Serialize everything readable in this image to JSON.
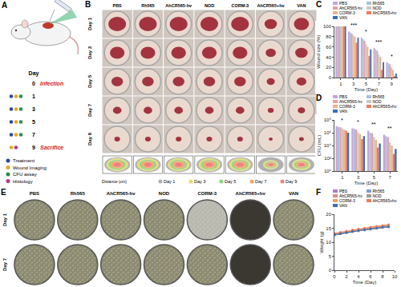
{
  "panels": {
    "A": {
      "panel": "A",
      "timeline_title": "Day",
      "days": [
        {
          "day": "0",
          "text": "Infection",
          "activities": []
        },
        {
          "day": "1",
          "activities": [
            "Treatment",
            "Wound Imaging",
            "CFU assay"
          ]
        },
        {
          "day": "3",
          "activities": [
            "Treatment",
            "Wound Imaging",
            "CFU assay"
          ]
        },
        {
          "day": "5",
          "activities": [
            "Treatment",
            "Wound Imaging",
            "CFU assay"
          ]
        },
        {
          "day": "7",
          "activities": [
            "Treatment",
            "Wound Imaging",
            "CFU assay"
          ]
        },
        {
          "day": "9",
          "text": "Sacrifice",
          "activities": [
            "Wound Imaging",
            "Histology"
          ]
        }
      ],
      "activities": [
        {
          "name": "Treatment",
          "color": "#2b4a9b"
        },
        {
          "name": "Wound Imaging",
          "color": "#e6a822"
        },
        {
          "name": "CFU assay",
          "color": "#2e8b57"
        },
        {
          "name": "Histology",
          "color": "#b03a8a"
        }
      ]
    },
    "B": {
      "panel": "B",
      "columns": [
        "PBS",
        "Rh565",
        "AhCR565-hv",
        "NOD",
        "CORM-3",
        "AhCR565+hv",
        "VAN"
      ],
      "rows": [
        "Day 1",
        "Day 3",
        "Day 5",
        "Day 7",
        "Day 9"
      ],
      "axis_label": "Distance (cm)",
      "legend": [
        {
          "name": "Day 1",
          "color": "#b0b0b0"
        },
        {
          "name": "Day 3",
          "color": "#e3dc6a"
        },
        {
          "name": "Day 5",
          "color": "#8fd080"
        },
        {
          "name": "Day 7",
          "color": "#f4a460"
        },
        {
          "name": "Day 9",
          "color": "#f08080"
        }
      ]
    },
    "E": {
      "panel": "E",
      "columns": [
        "PBS",
        "Rh565",
        "AhCR565-hv",
        "NOD",
        "CORM-3",
        "AhCR565+hv",
        "VAN"
      ],
      "rows": [
        "Day 1",
        "Day 7"
      ]
    }
  },
  "chart_data": [
    {
      "panel": "C",
      "type": "bar",
      "x_label": "Time (Day)",
      "y_label": "Wound size (%)",
      "x": [
        1,
        3,
        5,
        7,
        9
      ],
      "xlim": [
        0,
        10
      ],
      "xticks": [
        1,
        3,
        5,
        7,
        9
      ],
      "ylim": [
        0,
        100
      ],
      "yticks": [
        0,
        20,
        40,
        60,
        80,
        100
      ],
      "grid": false,
      "series": [
        {
          "name": "PBS",
          "color": "#c9a3d9",
          "values": [
            100,
            90,
            78,
            58,
            30
          ]
        },
        {
          "name": "Rh565",
          "color": "#a9c1e0",
          "values": [
            100,
            88,
            75,
            55,
            28
          ]
        },
        {
          "name": "AhCR565-hv",
          "color": "#e8a0a0",
          "values": [
            100,
            86,
            72,
            52,
            26
          ]
        },
        {
          "name": "NOD",
          "color": "#c8c8c8",
          "values": [
            100,
            82,
            65,
            45,
            20
          ]
        },
        {
          "name": "CORM-3",
          "color": "#f4b183",
          "values": [
            100,
            80,
            60,
            40,
            15
          ]
        },
        {
          "name": "AhCR565+hv",
          "color": "#f07a5a",
          "values": [
            100,
            68,
            42,
            15,
            3
          ]
        },
        {
          "name": "VAN",
          "color": "#3a6fb5",
          "values": [
            100,
            78,
            55,
            30,
            8
          ]
        }
      ],
      "annotations": [
        {
          "text": "***",
          "x": 3,
          "y": 93
        },
        {
          "text": "*",
          "x": 5,
          "y": 81
        },
        {
          "text": "***",
          "x": 7,
          "y": 61
        },
        {
          "text": "*",
          "x": 9,
          "y": 33
        }
      ]
    },
    {
      "panel": "D",
      "type": "bar",
      "x_label": "Time (Day)",
      "y_label": "CFU (mL)",
      "log": "y",
      "x": [
        1,
        3,
        5,
        7
      ],
      "xlim": [
        0,
        8
      ],
      "xticks": [
        1,
        3,
        5,
        7
      ],
      "ylim": [
        1,
        100000000
      ],
      "yticks": [
        {
          "value": 1,
          "label": "10⁰"
        },
        {
          "value": 100,
          "label": "10²"
        },
        {
          "value": 10000,
          "label": "10⁴"
        },
        {
          "value": 1000000,
          "label": "10⁶"
        },
        {
          "value": 100000000,
          "label": "10⁸"
        }
      ],
      "grid": false,
      "series": [
        {
          "name": "PBS",
          "color": "#c9a3d9",
          "values": [
            10000000,
            5000000,
            2000000,
            500000
          ]
        },
        {
          "name": "Rh565",
          "color": "#a9c1e0",
          "values": [
            8000000,
            4000000,
            1000000,
            300000
          ]
        },
        {
          "name": "AhCR565-hv",
          "color": "#e8a0a0",
          "values": [
            7000000,
            3000000,
            800000,
            200000
          ]
        },
        {
          "name": "NOD",
          "color": "#c8c8c8",
          "values": [
            5000000,
            1000000,
            200000,
            30000
          ]
        },
        {
          "name": "CORM-3",
          "color": "#f4b183",
          "values": [
            3000000,
            600000,
            80000,
            10000
          ]
        },
        {
          "name": "AhCR565+hv",
          "color": "#f07a5a",
          "values": [
            2000000,
            100000,
            5000,
            500
          ]
        },
        {
          "name": "VAN",
          "color": "#3a6fb5",
          "values": [
            1000000,
            300000,
            20000,
            3000
          ]
        }
      ],
      "annotations": [
        {
          "text": "*",
          "x": 1,
          "y": 20000000
        },
        {
          "text": "*",
          "x": 3,
          "y": 10000000
        },
        {
          "text": "**",
          "x": 5,
          "y": 4000000
        },
        {
          "text": "**",
          "x": 7,
          "y": 1000000
        }
      ]
    },
    {
      "panel": "F",
      "type": "line",
      "marker": "circle",
      "x_label": "Time (Day)",
      "y_label": "Weight (g)",
      "x": [
        0,
        1,
        2,
        3,
        4,
        5,
        6,
        7,
        8,
        9
      ],
      "xlim": [
        0,
        10
      ],
      "xticks": [
        0,
        2,
        4,
        6,
        8,
        10
      ],
      "ylim": [
        0,
        20
      ],
      "yticks": [
        0,
        5,
        10,
        15,
        20
      ],
      "grid": false,
      "series": [
        {
          "name": "PBS",
          "color": "#b07cc6",
          "values": [
            12.5,
            13,
            13.4,
            13.8,
            14.2,
            14.5,
            14.8,
            15,
            15.3,
            15.5
          ]
        },
        {
          "name": "Rh565",
          "color": "#7f9fce",
          "values": [
            12.8,
            13.2,
            13.6,
            14,
            14.3,
            14.6,
            14.9,
            15.2,
            15.4,
            15.7
          ]
        },
        {
          "name": "AhCR565-hv",
          "color": "#e08a8a",
          "values": [
            13,
            13.4,
            13.8,
            14.1,
            14.4,
            14.7,
            15,
            15.3,
            15.6,
            15.9
          ]
        },
        {
          "name": "NOD",
          "color": "#9a9a9a",
          "values": [
            12.6,
            13,
            13.3,
            13.7,
            14,
            14.3,
            14.6,
            14.9,
            15.2,
            15.4
          ]
        },
        {
          "name": "CORM-3",
          "color": "#f0a060",
          "values": [
            12.9,
            13.3,
            13.7,
            14,
            14.4,
            14.8,
            15.1,
            15.4,
            15.7,
            16
          ]
        },
        {
          "name": "AhCR565+hv",
          "color": "#f07a5a",
          "values": [
            13.2,
            13.6,
            14,
            14.4,
            14.8,
            15.1,
            15.4,
            15.7,
            16,
            16.3
          ]
        },
        {
          "name": "VAN",
          "color": "#3a6fb5",
          "values": [
            12.7,
            13.1,
            13.5,
            13.9,
            14.2,
            14.5,
            14.8,
            15.1,
            15.4,
            15.6
          ]
        }
      ]
    }
  ]
}
